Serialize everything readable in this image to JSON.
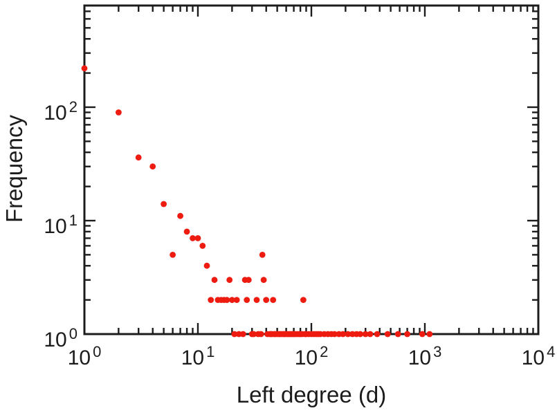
{
  "chart_data": {
    "type": "scatter",
    "title": "",
    "xlabel": "Left degree (d)",
    "ylabel": "Frequency",
    "xscale": "log",
    "yscale": "log",
    "xlim": [
      1,
      10000
    ],
    "ylim": [
      1,
      787
    ],
    "grid": false,
    "legend": "none",
    "tick_base": "10",
    "x_tick_exponents": [
      "0",
      "1",
      "2",
      "3",
      "4"
    ],
    "y_tick_exponents": [
      "0",
      "1",
      "2"
    ],
    "marker_color": "#ee1b10",
    "axis_color": "#1c1c1c",
    "points": [
      [
        1,
        220
      ],
      [
        2,
        90
      ],
      [
        3,
        36
      ],
      [
        4,
        30
      ],
      [
        5,
        14
      ],
      [
        6,
        5
      ],
      [
        7,
        11
      ],
      [
        8,
        8
      ],
      [
        9,
        7
      ],
      [
        10,
        7
      ],
      [
        11,
        6
      ],
      [
        12,
        4
      ],
      [
        13,
        2
      ],
      [
        14,
        3
      ],
      [
        15,
        2
      ],
      [
        16,
        2
      ],
      [
        17,
        2
      ],
      [
        18,
        2
      ],
      [
        19,
        3
      ],
      [
        20,
        2
      ],
      [
        21,
        1
      ],
      [
        22,
        2
      ],
      [
        23,
        1
      ],
      [
        25,
        1
      ],
      [
        26,
        3
      ],
      [
        27,
        2
      ],
      [
        28,
        3
      ],
      [
        30,
        1
      ],
      [
        31,
        1
      ],
      [
        33,
        2
      ],
      [
        34,
        1
      ],
      [
        36,
        1
      ],
      [
        37,
        5
      ],
      [
        38,
        3
      ],
      [
        40,
        2
      ],
      [
        41,
        1
      ],
      [
        43,
        1
      ],
      [
        44,
        1
      ],
      [
        45,
        1
      ],
      [
        46,
        2
      ],
      [
        47,
        1
      ],
      [
        48,
        1
      ],
      [
        50,
        1
      ],
      [
        52,
        1
      ],
      [
        53,
        1
      ],
      [
        55,
        1
      ],
      [
        57,
        1
      ],
      [
        58,
        1
      ],
      [
        60,
        1
      ],
      [
        62,
        1
      ],
      [
        64,
        1
      ],
      [
        66,
        1
      ],
      [
        68,
        1
      ],
      [
        70,
        1
      ],
      [
        72,
        1
      ],
      [
        75,
        1
      ],
      [
        78,
        1
      ],
      [
        80,
        1
      ],
      [
        83,
        1
      ],
      [
        85,
        2
      ],
      [
        88,
        1
      ],
      [
        90,
        1
      ],
      [
        95,
        1
      ],
      [
        100,
        1
      ],
      [
        105,
        1
      ],
      [
        110,
        1
      ],
      [
        115,
        1
      ],
      [
        120,
        1
      ],
      [
        130,
        1
      ],
      [
        140,
        1
      ],
      [
        150,
        1
      ],
      [
        160,
        1
      ],
      [
        175,
        1
      ],
      [
        190,
        1
      ],
      [
        210,
        1
      ],
      [
        230,
        1
      ],
      [
        250,
        1
      ],
      [
        270,
        1
      ],
      [
        300,
        1
      ],
      [
        330,
        1
      ],
      [
        380,
        1
      ],
      [
        470,
        1
      ],
      [
        580,
        1
      ],
      [
        700,
        1
      ],
      [
        950,
        1
      ],
      [
        1100,
        1
      ]
    ]
  }
}
